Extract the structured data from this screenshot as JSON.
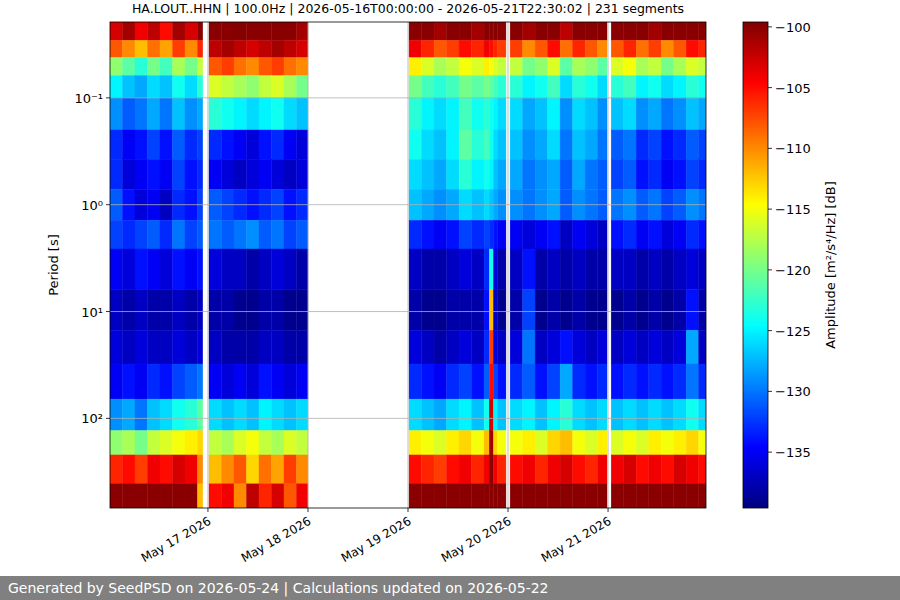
{
  "chart_data": {
    "type": "heatmap",
    "title": "HA.LOUT..HHN | 100.0Hz | 2026-05-16T00:00:00 - 2026-05-21T22:30:02 | 231 segments",
    "y_label": "Period [s]",
    "colorbar_label": "Amplitude [m²/s⁴/Hz] [dB]",
    "footer": "Generated by SeedPSD on 2026-05-24 | Calculations updated on 2026-05-22",
    "log": "y",
    "grid": true,
    "x": [
      "2026-05-16T00:30",
      "2026-05-16T03:30",
      "2026-05-16T06:30",
      "2026-05-16T09:30",
      "2026-05-16T12:30",
      "2026-05-16T15:30",
      "2026-05-16T18:30",
      "2026-05-16T21:30",
      "2026-05-16T22:45",
      "2026-05-17T00:15",
      "2026-05-17T03:15",
      "2026-05-17T06:15",
      "2026-05-17T09:15",
      "2026-05-17T12:15",
      "2026-05-17T15:15",
      "2026-05-17T18:15",
      "2026-05-17T21:15",
      "2026-05-18T00:00",
      "2026-05-19T00:15",
      "2026-05-19T03:15",
      "2026-05-19T06:15",
      "2026-05-19T09:15",
      "2026-05-19T12:15",
      "2026-05-19T15:15",
      "2026-05-19T18:15",
      "2026-05-19T19:30",
      "2026-05-19T20:30",
      "2026-05-19T21:30",
      "2026-05-19T23:30",
      "2026-05-20T00:30",
      "2026-05-20T03:30",
      "2026-05-20T06:30",
      "2026-05-20T09:30",
      "2026-05-20T12:30",
      "2026-05-20T15:30",
      "2026-05-20T18:30",
      "2026-05-20T21:30",
      "2026-05-20T23:45",
      "2026-05-21T00:45",
      "2026-05-21T03:45",
      "2026-05-21T06:45",
      "2026-05-21T09:45",
      "2026-05-21T12:45",
      "2026-05-21T15:45",
      "2026-05-21T18:45",
      "2026-05-21T21:45"
    ],
    "xlim": [
      "2026-05-16T00:30",
      "2026-05-21T23:30"
    ],
    "xticks": [
      {
        "value": "2026-05-17T00:00",
        "label": "May 17 2026"
      },
      {
        "value": "2026-05-18T00:00",
        "label": "May 18 2026"
      },
      {
        "value": "2026-05-19T00:00",
        "label": "May 19 2026"
      },
      {
        "value": "2026-05-20T00:00",
        "label": "May 20 2026"
      },
      {
        "value": "2026-05-21T00:00",
        "label": "May 21 2026"
      }
    ],
    "y_bins": [
      0.0195,
      0.029,
      0.042,
      0.062,
      0.1,
      0.2,
      0.38,
      0.72,
      1.4,
      2.6,
      6.2,
      15,
      31,
      66,
      130,
      220,
      410,
      690
    ],
    "ylim": [
      0.0195,
      690
    ],
    "yticks": [
      {
        "value": 0.1,
        "label": "10⁻¹"
      },
      {
        "value": 1,
        "label": "10⁰"
      },
      {
        "value": 10,
        "label": "10¹"
      },
      {
        "value": 100,
        "label": "10²"
      }
    ],
    "values": [
      [
        -103,
        -101,
        -104,
        -102,
        -105,
        -101,
        -103,
        -100,
        null,
        -100,
        -100,
        -99.8,
        -100,
        -100,
        -100,
        -100,
        -101,
        null,
        -100,
        -100,
        -101,
        -100,
        -100,
        -101,
        -100,
        -100,
        -100,
        -100,
        null,
        -100,
        -101,
        -100,
        -100,
        -102,
        -100,
        -100,
        -100,
        null,
        -100,
        -100,
        -100,
        -101,
        -100,
        -100,
        -100,
        -100
      ],
      [
        -108,
        -110,
        -112,
        -109,
        -111,
        -107,
        -110,
        -106,
        null,
        -102,
        -101,
        -102,
        -103,
        -102,
        -101,
        -102,
        -103,
        null,
        -104,
        -106,
        -108,
        -107,
        -105,
        -106,
        -104,
        -105,
        -106,
        -107,
        null,
        -107,
        -110,
        -108,
        -105,
        -109,
        -106,
        -108,
        -110,
        null,
        -108,
        -106,
        -109,
        -107,
        -110,
        -108,
        -105,
        -106
      ],
      [
        -119,
        -121,
        -123,
        -120,
        -122,
        -118,
        -120,
        -117,
        null,
        -108,
        -107,
        -109,
        -110,
        -108,
        -107,
        -109,
        -110,
        null,
        -114,
        -116,
        -118,
        -117,
        -115,
        -116,
        -114,
        -115,
        -116,
        -117,
        null,
        -117,
        -120,
        -119,
        -116,
        -121,
        -118,
        -119,
        -121,
        null,
        -116,
        -115,
        -118,
        -117,
        -120,
        -118,
        -116,
        -117
      ],
      [
        -125,
        -127,
        -128,
        -126,
        -127,
        -124,
        -126,
        -123,
        null,
        -116,
        -117,
        -118,
        -119,
        -117,
        -116,
        -118,
        -120,
        null,
        -120,
        -122,
        -123,
        -122,
        -120,
        -121,
        -120,
        -121,
        -122,
        -123,
        null,
        -123,
        -125,
        -124,
        -122,
        -126,
        -123,
        -124,
        -126,
        null,
        -123,
        -122,
        -125,
        -124,
        -126,
        -125,
        -123,
        -124
      ],
      [
        -129,
        -131,
        -130,
        -128,
        -130,
        -127,
        -129,
        -128,
        null,
        -123,
        -124,
        -125,
        -126,
        -125,
        -124,
        -126,
        -127,
        null,
        -123,
        -125,
        -126,
        -125,
        -122,
        -124,
        -123,
        -124,
        -125,
        -126,
        null,
        -126,
        -128,
        -127,
        -125,
        -129,
        -126,
        -127,
        -129,
        null,
        -127,
        -126,
        -129,
        -128,
        -130,
        -129,
        -127,
        -128
      ],
      [
        -133,
        -135,
        -134,
        -132,
        -134,
        -131,
        -133,
        -132,
        null,
        -133,
        -134,
        -135,
        -136,
        -134,
        -133,
        -135,
        -136,
        null,
        -124,
        -126,
        -127,
        -125,
        -121,
        -123,
        -122,
        -124,
        -126,
        -127,
        null,
        -127,
        -129,
        -128,
        -126,
        -130,
        -127,
        -128,
        -130,
        null,
        -131,
        -130,
        -133,
        -132,
        -134,
        -133,
        -131,
        -132
      ],
      [
        -133,
        -136,
        -135,
        -134,
        -135,
        -132,
        -134,
        -133,
        null,
        -135,
        -136,
        -137,
        -136,
        -135,
        -136,
        -137,
        -136,
        null,
        -126,
        -127,
        -128,
        -126,
        -123,
        -125,
        -124,
        -125,
        -127,
        -128,
        null,
        -128,
        -130,
        -129,
        -128,
        -131,
        -128,
        -130,
        -131,
        null,
        -132,
        -131,
        -134,
        -133,
        -135,
        -134,
        -132,
        -133
      ],
      [
        -131,
        -134,
        -136,
        -135,
        -137,
        -133,
        -134,
        -132,
        null,
        -131,
        -132,
        -133,
        -134,
        -133,
        -132,
        -134,
        -133,
        null,
        -127,
        -128,
        -129,
        -128,
        -126,
        -127,
        -126,
        -127,
        -128,
        -129,
        null,
        -129,
        -130,
        -129,
        -128,
        -131,
        -129,
        -130,
        -131,
        null,
        -130,
        -129,
        -131,
        -130,
        -132,
        -131,
        -129,
        -130
      ],
      [
        -132,
        -133,
        -132,
        -131,
        -133,
        -130,
        -132,
        -131,
        null,
        -130,
        -131,
        -130,
        -129,
        -131,
        -130,
        -132,
        -131,
        null,
        -133,
        -134,
        -135,
        -134,
        -132,
        -133,
        -132,
        -133,
        -134,
        -135,
        null,
        -135,
        -136,
        -135,
        -134,
        -137,
        -135,
        -136,
        -137,
        null,
        -134,
        -133,
        -135,
        -134,
        -136,
        -135,
        -133,
        -134
      ],
      [
        -135,
        -136,
        -134,
        -135,
        -136,
        -134,
        -135,
        -134,
        null,
        -136,
        -137,
        -137,
        -138,
        -137,
        -136,
        -137,
        -138,
        null,
        -137,
        -138,
        -138,
        -137,
        -136,
        -137,
        -133,
        -124,
        -136,
        -138,
        null,
        -137,
        -134,
        -138,
        -137,
        -138,
        -137,
        -138,
        -138,
        null,
        -137,
        -137,
        -138,
        -137,
        -138,
        -137,
        -136,
        -137
      ],
      [
        -137,
        -138,
        -137,
        -138,
        -138,
        -137,
        -138,
        -137,
        null,
        -138,
        -138,
        -139,
        -139,
        -138,
        -138,
        -139,
        -139,
        null,
        -138,
        -139,
        -139,
        -138,
        -138,
        -138,
        -134,
        -112,
        -137,
        -139,
        null,
        -138,
        -132,
        -139,
        -138,
        -139,
        -138,
        -139,
        -139,
        null,
        -139,
        -138,
        -139,
        -138,
        -139,
        -138,
        -134,
        -138
      ],
      [
        -136,
        -137,
        -136,
        -137,
        -137,
        -136,
        -137,
        -136,
        null,
        -137,
        -138,
        -138,
        -138,
        -137,
        -137,
        -138,
        -138,
        null,
        -136,
        -137,
        -138,
        -137,
        -136,
        -137,
        -133,
        -107,
        -136,
        -137,
        null,
        -136,
        -130,
        -137,
        -136,
        -134,
        -136,
        -137,
        -136,
        null,
        -137,
        -136,
        -137,
        -136,
        -137,
        -136,
        -128,
        -137
      ],
      [
        -135,
        -134,
        -135,
        -133,
        -134,
        -132,
        -131,
        -130,
        null,
        -135,
        -136,
        -135,
        -136,
        -134,
        -135,
        -136,
        -135,
        null,
        -133,
        -134,
        -135,
        -133,
        -132,
        -134,
        -131,
        -105,
        -132,
        -134,
        null,
        -133,
        -131,
        -134,
        -132,
        -128,
        -133,
        -134,
        -133,
        null,
        -134,
        -133,
        -134,
        -133,
        -134,
        -133,
        -130,
        -133
      ],
      [
        -129,
        -128,
        -130,
        -127,
        -126,
        -124,
        -123,
        -121,
        null,
        -126,
        -127,
        -126,
        -127,
        -125,
        -126,
        -127,
        -126,
        null,
        -126,
        -127,
        -128,
        -126,
        -125,
        -127,
        -124,
        -103,
        -125,
        -127,
        null,
        -126,
        -125,
        -127,
        -125,
        -123,
        -126,
        -127,
        -126,
        null,
        -127,
        -126,
        -127,
        -126,
        -127,
        -126,
        -124,
        -126
      ],
      [
        -119,
        -118,
        -120,
        -117,
        -116,
        -115,
        -114,
        -113,
        null,
        -117,
        -118,
        -116,
        -115,
        -117,
        -118,
        -116,
        -117,
        null,
        -114,
        -115,
        -116,
        -114,
        -113,
        -115,
        -112,
        -101,
        -113,
        -115,
        null,
        -115,
        -114,
        -116,
        -113,
        -112,
        -115,
        -116,
        -114,
        null,
        -116,
        -115,
        -116,
        -114,
        -115,
        -114,
        -113,
        -115
      ],
      [
        -106,
        -105,
        -107,
        -104,
        -105,
        -103,
        -104,
        -110,
        null,
        -112,
        -110,
        -108,
        -113,
        -109,
        -111,
        -107,
        -110,
        null,
        -105,
        -106,
        -107,
        -105,
        -104,
        -106,
        -104,
        -100,
        -104,
        -106,
        null,
        -105,
        -104,
        -106,
        -104,
        -103,
        -105,
        -106,
        -104,
        null,
        -104,
        -103,
        -105,
        -104,
        -105,
        -103,
        -104,
        -105
      ],
      [
        -100,
        -100,
        -100,
        -100,
        -100,
        -100,
        -100,
        -112,
        null,
        -105,
        -104,
        -110,
        -102,
        -106,
        -103,
        -108,
        -104,
        null,
        -100,
        -100,
        -100,
        -100,
        -100,
        -100,
        -100,
        -100,
        -100,
        -100,
        null,
        -100,
        -100,
        -100,
        -100,
        -100,
        -100,
        -100,
        -100,
        null,
        -100,
        -100,
        -100,
        -100,
        -100,
        -100,
        -100,
        -100
      ]
    ],
    "colorbar_lim": [
      -139.6,
      -99.6
    ],
    "colorbar_ticks": [
      {
        "value": -100,
        "label": "−100"
      },
      {
        "value": -105,
        "label": "−105"
      },
      {
        "value": -110,
        "label": "−110"
      },
      {
        "value": -115,
        "label": "−115"
      },
      {
        "value": -120,
        "label": "−120"
      },
      {
        "value": -125,
        "label": "−125"
      },
      {
        "value": -130,
        "label": "−130"
      },
      {
        "value": -135,
        "label": "−135"
      }
    ]
  }
}
